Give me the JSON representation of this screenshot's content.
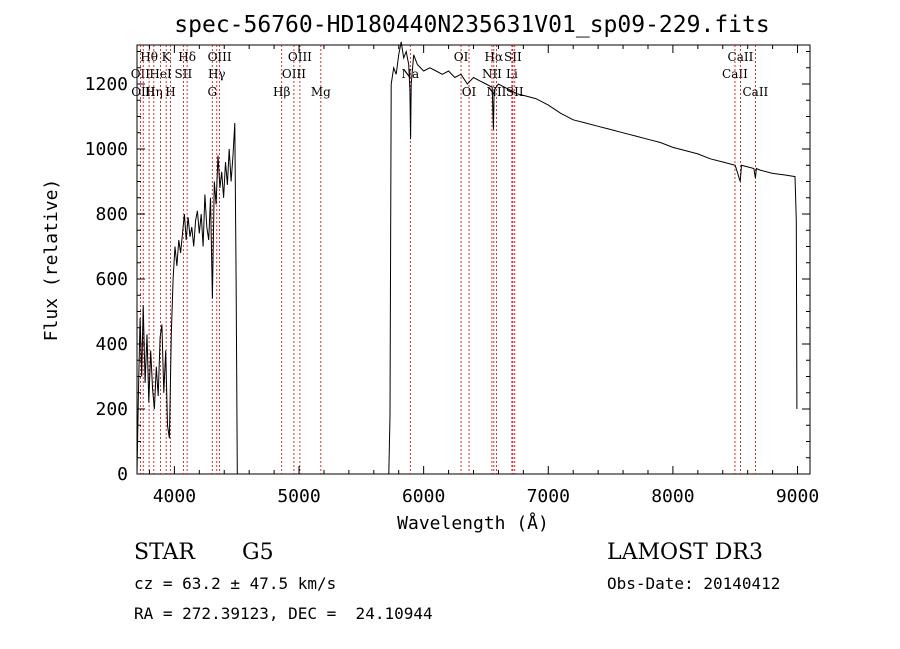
{
  "chart_data": {
    "type": "line",
    "title": "spec-56760-HD180440N235631V01_sp09-229.fits",
    "xlabel": "Wavelength (Å)",
    "ylabel": "Flux (relative)",
    "xlim": [
      3700,
      9100
    ],
    "ylim": [
      0,
      1320
    ],
    "x_ticks": [
      4000,
      5000,
      6000,
      7000,
      8000,
      9000
    ],
    "y_ticks": [
      0,
      200,
      400,
      600,
      800,
      1000,
      1200
    ],
    "grid": false,
    "line_color": "#000000",
    "marker_color": "#cc0000",
    "series": [
      {
        "segments": [
          [
            [
              3700,
              0
            ],
            [
              3712,
              260
            ],
            [
              3725,
              480
            ],
            [
              3738,
              300
            ],
            [
              3750,
              520
            ],
            [
              3765,
              280
            ],
            [
              3780,
              430
            ],
            [
              3795,
              220
            ],
            [
              3810,
              380
            ],
            [
              3825,
              260
            ],
            [
              3840,
              200
            ],
            [
              3855,
              330
            ],
            [
              3870,
              240
            ],
            [
              3885,
              420
            ],
            [
              3900,
              460
            ],
            [
              3915,
              250
            ],
            [
              3930,
              380
            ],
            [
              3945,
              150
            ],
            [
              3960,
              110
            ],
            [
              3975,
              430
            ],
            [
              3990,
              600
            ],
            [
              4005,
              700
            ],
            [
              4020,
              640
            ],
            [
              4035,
              720
            ],
            [
              4050,
              680
            ],
            [
              4065,
              740
            ],
            [
              4080,
              800
            ],
            [
              4095,
              720
            ],
            [
              4110,
              790
            ],
            [
              4125,
              730
            ],
            [
              4140,
              760
            ],
            [
              4155,
              700
            ],
            [
              4170,
              780
            ],
            [
              4185,
              810
            ],
            [
              4200,
              740
            ],
            [
              4215,
              800
            ],
            [
              4230,
              700
            ],
            [
              4245,
              860
            ],
            [
              4260,
              760
            ],
            [
              4275,
              720
            ],
            [
              4290,
              850
            ],
            [
              4305,
              540
            ],
            [
              4320,
              900
            ],
            [
              4335,
              830
            ],
            [
              4350,
              980
            ],
            [
              4365,
              880
            ],
            [
              4380,
              930
            ],
            [
              4395,
              850
            ],
            [
              4410,
              960
            ],
            [
              4425,
              890
            ],
            [
              4440,
              1000
            ],
            [
              4455,
              900
            ],
            [
              4470,
              980
            ],
            [
              4485,
              1080
            ],
            [
              4495,
              600
            ],
            [
              4505,
              0
            ]
          ],
          [
            [
              5720,
              0
            ],
            [
              5730,
              180
            ],
            [
              5740,
              1200
            ],
            [
              5760,
              1250
            ],
            [
              5780,
              1230
            ],
            [
              5800,
              1290
            ],
            [
              5820,
              1330
            ],
            [
              5840,
              1280
            ],
            [
              5860,
              1300
            ],
            [
              5880,
              1260
            ],
            [
              5890,
              1180
            ],
            [
              5895,
              1030
            ],
            [
              5900,
              1200
            ],
            [
              5920,
              1290
            ],
            [
              5950,
              1260
            ],
            [
              6000,
              1240
            ],
            [
              6050,
              1250
            ],
            [
              6100,
              1240
            ],
            [
              6150,
              1230
            ],
            [
              6200,
              1240
            ],
            [
              6250,
              1220
            ],
            [
              6300,
              1230
            ],
            [
              6350,
              1200
            ],
            [
              6400,
              1220
            ],
            [
              6450,
              1210
            ],
            [
              6500,
              1200
            ],
            [
              6550,
              1190
            ],
            [
              6560,
              1060
            ],
            [
              6565,
              1180
            ],
            [
              6600,
              1200
            ],
            [
              6650,
              1190
            ],
            [
              6700,
              1180
            ],
            [
              6750,
              1170
            ],
            [
              6800,
              1165
            ],
            [
              6900,
              1155
            ],
            [
              7000,
              1135
            ],
            [
              7100,
              1110
            ],
            [
              7200,
              1090
            ],
            [
              7300,
              1080
            ],
            [
              7400,
              1070
            ],
            [
              7500,
              1060
            ],
            [
              7600,
              1050
            ],
            [
              7700,
              1040
            ],
            [
              7800,
              1030
            ],
            [
              7900,
              1020
            ],
            [
              8000,
              1005
            ],
            [
              8100,
              995
            ],
            [
              8200,
              985
            ],
            [
              8300,
              970
            ],
            [
              8400,
              960
            ],
            [
              8500,
              950
            ],
            [
              8540,
              900
            ],
            [
              8550,
              950
            ],
            [
              8600,
              945
            ],
            [
              8650,
              940
            ],
            [
              8662,
              910
            ],
            [
              8670,
              940
            ],
            [
              8700,
              935
            ],
            [
              8800,
              925
            ],
            [
              8900,
              920
            ],
            [
              8980,
              915
            ],
            [
              8990,
              780
            ],
            [
              8995,
              200
            ]
          ]
        ]
      }
    ],
    "markers": [
      {
        "wl": 3727,
        "label": "OII",
        "row": 1
      },
      {
        "wl": 3750,
        "label": "OIII",
        "row": 2
      },
      {
        "wl": 3797,
        "label": "Hθ",
        "row": 0
      },
      {
        "wl": 3835,
        "label": "Hη",
        "row": 2
      },
      {
        "wl": 3889,
        "label": "HeI",
        "row": 1
      },
      {
        "wl": 3934,
        "label": "K",
        "row": 0
      },
      {
        "wl": 3969,
        "label": "H",
        "row": 2
      },
      {
        "wl": 4072,
        "label": "SII",
        "row": 1
      },
      {
        "wl": 4102,
        "label": "Hδ",
        "row": 0
      },
      {
        "wl": 4304,
        "label": "G",
        "row": 2
      },
      {
        "wl": 4340,
        "label": "Hγ",
        "row": 1
      },
      {
        "wl": 4363,
        "label": "OIII",
        "row": 0
      },
      {
        "wl": 4861,
        "label": "Hβ",
        "row": 2
      },
      {
        "wl": 4959,
        "label": "OIII",
        "row": 1
      },
      {
        "wl": 5007,
        "label": "OIII",
        "row": 0
      },
      {
        "wl": 5175,
        "label": "Mg",
        "row": 2
      },
      {
        "wl": 5893,
        "label": "Na",
        "row": 1
      },
      {
        "wl": 6300,
        "label": "OI",
        "row": 0
      },
      {
        "wl": 6364,
        "label": "OI",
        "row": 2
      },
      {
        "wl": 6548,
        "label": "NII",
        "row": 1
      },
      {
        "wl": 6563,
        "label": "Hα",
        "row": 0
      },
      {
        "wl": 6584,
        "label": "NII",
        "row": 2
      },
      {
        "wl": 6708,
        "label": "Li",
        "row": 1
      },
      {
        "wl": 6716,
        "label": "SII",
        "row": 0
      },
      {
        "wl": 6731,
        "label": "SII",
        "row": 2
      },
      {
        "wl": 8498,
        "label": "CaII",
        "row": 1
      },
      {
        "wl": 8542,
        "label": "CaII",
        "row": 0
      },
      {
        "wl": 8662,
        "label": "CaII",
        "row": 2
      }
    ]
  },
  "info": {
    "object_class": "STAR",
    "subclass": "G5",
    "survey": "LAMOST DR3",
    "cz": "cz = 63.2 ± 47.5 km/s",
    "obs_date": "Obs-Date: 20140412",
    "coords": "RA = 272.39123, DEC =  24.10944"
  }
}
